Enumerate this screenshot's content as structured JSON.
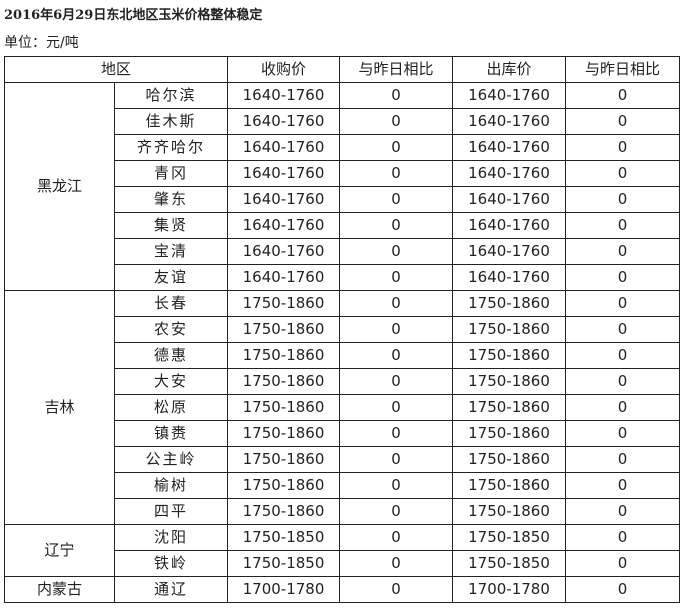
{
  "title": "2016年6月29日东北地区玉米价格整体稳定",
  "unit": "单位：元/吨",
  "headers": [
    "地区",
    "收购价",
    "与昨日相比",
    "出库价",
    "与昨日相比"
  ],
  "groups": [
    {
      "region": "黑龙江",
      "rows": [
        {
          "city": "哈尔滨",
          "buy": "1640-1760",
          "buy_chg": "0",
          "out": "1640-1760",
          "out_chg": "0"
        },
        {
          "city": "佳木斯",
          "buy": "1640-1760",
          "buy_chg": "0",
          "out": "1640-1760",
          "out_chg": "0"
        },
        {
          "city": "齐齐哈尔",
          "buy": "1640-1760",
          "buy_chg": "0",
          "out": "1640-1760",
          "out_chg": "0"
        },
        {
          "city": "青冈",
          "buy": "1640-1760",
          "buy_chg": "0",
          "out": "1640-1760",
          "out_chg": "0"
        },
        {
          "city": "肇东",
          "buy": "1640-1760",
          "buy_chg": "0",
          "out": "1640-1760",
          "out_chg": "0"
        },
        {
          "city": "集贤",
          "buy": "1640-1760",
          "buy_chg": "0",
          "out": "1640-1760",
          "out_chg": "0"
        },
        {
          "city": "宝清",
          "buy": "1640-1760",
          "buy_chg": "0",
          "out": "1640-1760",
          "out_chg": "0"
        },
        {
          "city": "友谊",
          "buy": "1640-1760",
          "buy_chg": "0",
          "out": "1640-1760",
          "out_chg": "0"
        }
      ]
    },
    {
      "region": "吉林",
      "rows": [
        {
          "city": "长春",
          "buy": "1750-1860",
          "buy_chg": "0",
          "out": "1750-1860",
          "out_chg": "0"
        },
        {
          "city": "农安",
          "buy": "1750-1860",
          "buy_chg": "0",
          "out": "1750-1860",
          "out_chg": "0"
        },
        {
          "city": "德惠",
          "buy": "1750-1860",
          "buy_chg": "0",
          "out": "1750-1860",
          "out_chg": "0"
        },
        {
          "city": "大安",
          "buy": "1750-1860",
          "buy_chg": "0",
          "out": "1750-1860",
          "out_chg": "0"
        },
        {
          "city": "松原",
          "buy": "1750-1860",
          "buy_chg": "0",
          "out": "1750-1860",
          "out_chg": "0"
        },
        {
          "city": "镇赉",
          "buy": "1750-1860",
          "buy_chg": "0",
          "out": "1750-1860",
          "out_chg": "0"
        },
        {
          "city": "公主岭",
          "buy": "1750-1860",
          "buy_chg": "0",
          "out": "1750-1860",
          "out_chg": "0"
        },
        {
          "city": "榆树",
          "buy": "1750-1860",
          "buy_chg": "0",
          "out": "1750-1860",
          "out_chg": "0"
        },
        {
          "city": "四平",
          "buy": "1750-1860",
          "buy_chg": "0",
          "out": "1750-1860",
          "out_chg": "0"
        }
      ]
    },
    {
      "region": "辽宁",
      "rows": [
        {
          "city": "沈阳",
          "buy": "1750-1850",
          "buy_chg": "0",
          "out": "1750-1850",
          "out_chg": "0"
        },
        {
          "city": "铁岭",
          "buy": "1750-1850",
          "buy_chg": "0",
          "out": "1750-1850",
          "out_chg": "0"
        }
      ]
    },
    {
      "region": "内蒙古",
      "rows": [
        {
          "city": "通辽",
          "buy": "1700-1780",
          "buy_chg": "0",
          "out": "1700-1780",
          "out_chg": "0"
        }
      ]
    }
  ]
}
